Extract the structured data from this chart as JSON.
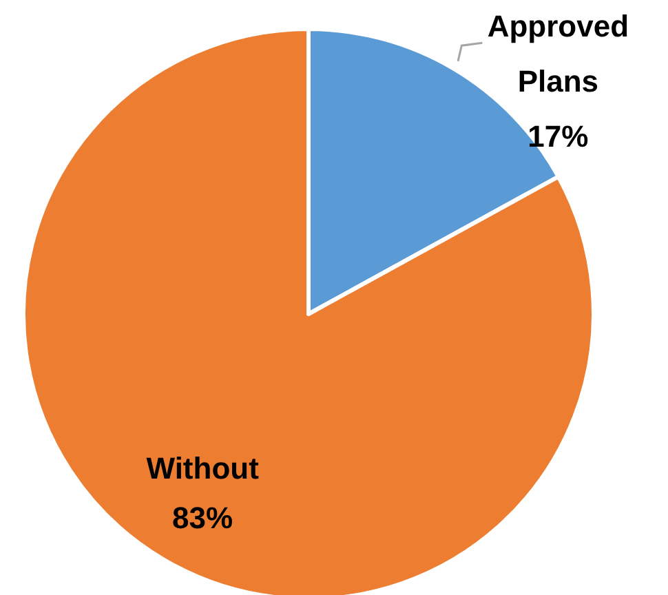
{
  "chart_data": {
    "type": "pie",
    "categories": [
      "Approved Plans",
      "Without"
    ],
    "values": [
      17,
      83
    ],
    "colors": [
      "#5b9bd5",
      "#ed7d31"
    ],
    "value_labels": [
      "17%",
      "83%"
    ]
  }
}
